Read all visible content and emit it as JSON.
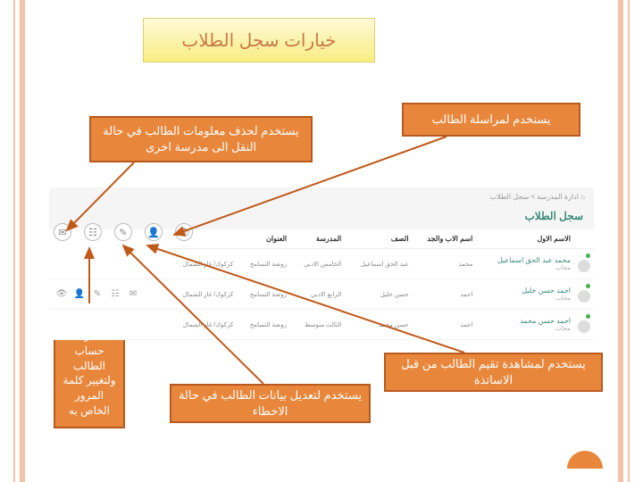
{
  "title": "خيارات سجل الطلاب",
  "callouts": {
    "c1": "يستخدم لمراسلة الطالب",
    "c2": "يستخدم لحذف معلومات الطالب في حالة النقل الى مدرسة اخرى",
    "c3": "يستخدم لمشاهدة تقيم الطالب من قبل الاساتذة",
    "c4": "يستخدم لتعديل بيانات الطالب في حالة الاخطاء",
    "c5": "يستخدم لمعرفة حساب الطالب ولتغيير كلمة المرور الخاص به"
  },
  "panel": {
    "breadcrumb": "⌂ ادارة المدرسة > سجل الطلاب",
    "heading": "سجل الطلاب",
    "columns": [
      "",
      "الاسم الاول",
      "اسم الاب والجد",
      "الصف",
      "المدرسة",
      "العنوان",
      ""
    ],
    "rows": [
      {
        "name": "محمد عبد الحق اسماعيل",
        "sub": "مجاب",
        "first": "محمد",
        "father": "عبد الحق اسماعيل",
        "grade": "الخامس الادبي",
        "school": "روضة التسامح",
        "addr": "كركوك/ غاز الشمال"
      },
      {
        "name": "احمد حسن خليل",
        "sub": "مجاب",
        "first": "احمد",
        "father": "حسن خليل",
        "grade": "الرابع الادبي",
        "school": "روضة التسامح",
        "addr": "كركوك/ غاز الشمال"
      },
      {
        "name": "احمد حسن محمد",
        "sub": "مجاب",
        "first": "احمد",
        "father": "حسن محمد",
        "grade": "الثالث متوسط",
        "school": "روضة التسامح",
        "addr": "كركوك/ غاز الشمال"
      }
    ]
  },
  "icons": {
    "eye": "👁",
    "user": "👤",
    "pen": "✎",
    "bars": "☷",
    "gear": "✉"
  },
  "colors": {
    "accent": "#e8873c",
    "border": "#b85a1f",
    "title_bg": "#f9ed82",
    "teal": "#3a8a7a"
  }
}
